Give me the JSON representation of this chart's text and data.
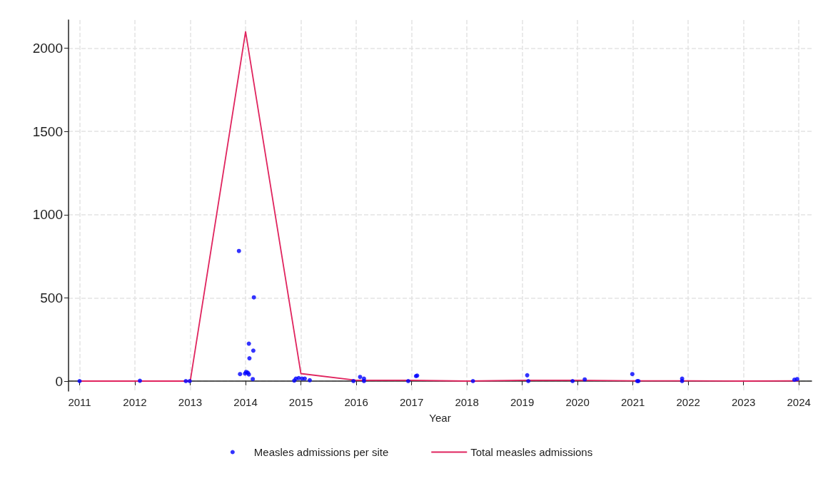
{
  "chart_data": {
    "type": "scatter",
    "xlabel": "Year",
    "xlim": [
      2010.8,
      2024.23
    ],
    "xticks": [
      2011,
      2012,
      2013,
      2014,
      2015,
      2016,
      2017,
      2018,
      2019,
      2020,
      2021,
      2022,
      2023,
      2024
    ],
    "ylim": [
      -60,
      2170
    ],
    "yticks": [
      0,
      500,
      1000,
      1500,
      2000
    ],
    "grid": true,
    "legend": "bottom",
    "series": [
      {
        "name": "Measles admissions per site",
        "marker": "circle",
        "color": "#0000ff",
        "x": [
          2011,
          2012.09,
          2012.92,
          2012.99,
          2013.88,
          2014.15,
          2014.06,
          2014.14,
          2014.07,
          2013.9,
          2013.99,
          2014.01,
          2014.04,
          2014.06,
          2014.13,
          2014.88,
          2014.91,
          2014.96,
          2015.02,
          2015.07,
          2015.16,
          2015.95,
          2016.07,
          2016.14,
          2016.14,
          2016.94,
          2017.08,
          2017.1,
          2018.11,
          2019.09,
          2019.11,
          2019.91,
          2020.13,
          2020.99,
          2021.08,
          2021.1,
          2021.89,
          2021.89,
          2023.92,
          2023.97
        ],
        "values": [
          0,
          2,
          0,
          0,
          782,
          503,
          225,
          183,
          137,
          42,
          45,
          55,
          50,
          40,
          12,
          3,
          15,
          18,
          15,
          15,
          5,
          0,
          25,
          15,
          0,
          0,
          30,
          33,
          0,
          35,
          0,
          0,
          10,
          42,
          0,
          0,
          15,
          0,
          8,
          12
        ]
      },
      {
        "name": "Total measles admissions",
        "type": "line",
        "marker": "none",
        "color": "#e0245e",
        "x": [
          2011,
          2012,
          2013,
          2014,
          2015,
          2016,
          2017,
          2018,
          2019,
          2020,
          2021,
          2022,
          2023,
          2024
        ],
        "values": [
          0,
          0,
          0,
          2100,
          45,
          5,
          5,
          0,
          5,
          5,
          2,
          2,
          0,
          2
        ]
      }
    ]
  }
}
